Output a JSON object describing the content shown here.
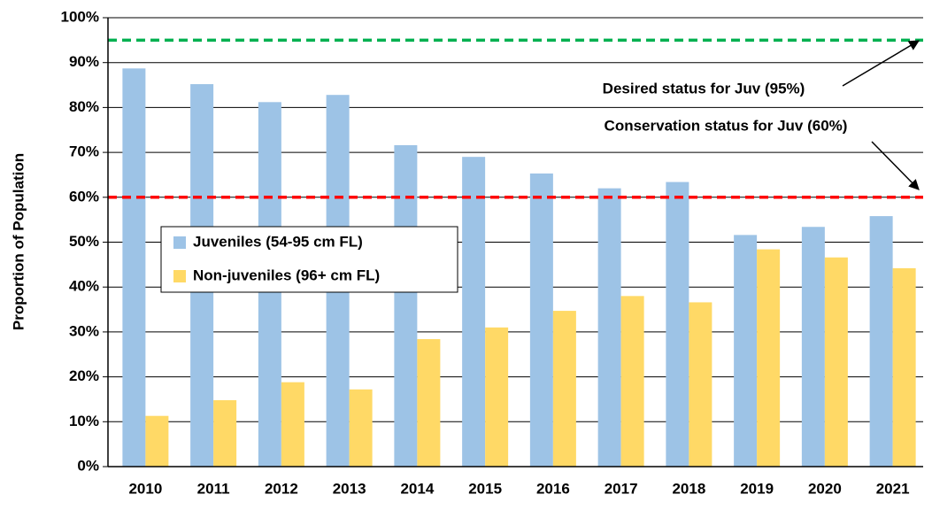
{
  "chart_data": {
    "type": "bar",
    "y_axis_label": "Proportion of Population",
    "categories": [
      "2010",
      "2011",
      "2012",
      "2013",
      "2014",
      "2015",
      "2016",
      "2017",
      "2018",
      "2019",
      "2020",
      "2021"
    ],
    "series": [
      {
        "name": "Juveniles (54-95 cm FL)",
        "color": "#9dc3e6",
        "values": [
          88.7,
          85.2,
          81.2,
          82.8,
          71.6,
          69.0,
          65.3,
          62.0,
          63.4,
          51.6,
          53.4,
          55.8
        ]
      },
      {
        "name": "Non-juveniles (96+ cm FL)",
        "color": "#ffd966",
        "values": [
          11.3,
          14.8,
          18.8,
          17.2,
          28.4,
          31.0,
          34.7,
          38.0,
          36.6,
          48.4,
          46.6,
          44.2
        ]
      }
    ],
    "ylim": [
      0,
      100
    ],
    "yticks": [
      {
        "value": 0,
        "label": "0%"
      },
      {
        "value": 10,
        "label": "10%"
      },
      {
        "value": 20,
        "label": "20%"
      },
      {
        "value": 30,
        "label": "30%"
      },
      {
        "value": 40,
        "label": "40%"
      },
      {
        "value": 50,
        "label": "50%"
      },
      {
        "value": 60,
        "label": "60%"
      },
      {
        "value": 70,
        "label": "70%"
      },
      {
        "value": 80,
        "label": "80%"
      },
      {
        "value": 90,
        "label": "90%"
      },
      {
        "value": 100,
        "label": "100%"
      }
    ],
    "grid": true,
    "reference_lines": [
      {
        "value": 95,
        "color": "#00b050",
        "annotation": "Desired status for Juv (95%)"
      },
      {
        "value": 60,
        "color": "#ff0000",
        "annotation": "Conservation status for Juv (60%)"
      }
    ]
  }
}
